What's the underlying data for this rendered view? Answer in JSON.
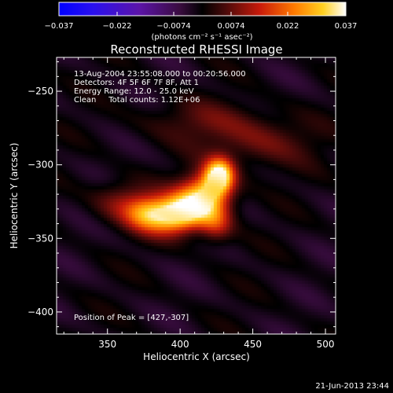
{
  "colorbar": {
    "tick_labels": [
      "−0.037",
      "−0.022",
      "−0.0074",
      "0.0074",
      "0.022",
      "0.037"
    ],
    "tick_values": [
      -0.037,
      -0.022,
      -0.0074,
      0.0074,
      0.022,
      0.037
    ],
    "range": [
      -0.037,
      0.037
    ],
    "units_label": "(photons cm⁻² s⁻¹ asec⁻²)"
  },
  "chart_data": {
    "type": "heatmap",
    "title": "Reconstructed RHESSI Image",
    "xlabel": "Heliocentric X (arcsec)",
    "ylabel": "Heliocentric Y (arcsec)",
    "xlim": [
      315,
      507
    ],
    "ylim": [
      -415,
      -227
    ],
    "xticks": [
      350,
      400,
      450,
      500
    ],
    "yticks": [
      -250,
      -300,
      -350,
      -400
    ],
    "xtick_labels": [
      "350",
      "400",
      "450",
      "500"
    ],
    "ytick_labels": [
      "−250",
      "−300",
      "−350",
      "−400"
    ],
    "annotations": [
      "13-Aug-2004 23:55:08.000 to 00:20:56.000",
      "Detectors: 4F 5F 6F 7F 8F, Att 1",
      "Energy Range: 12.0 - 25.0 keV",
      "Clean     Total counts: 1.12E+06"
    ],
    "peak_label": "Position of Peak = [427,-307]",
    "peak": [
      427,
      -307
    ],
    "sources": [
      {
        "x": 427,
        "y": -307,
        "amp": 1.0,
        "sx": 7,
        "sy": 8
      },
      {
        "x": 418,
        "y": -320,
        "amp": 0.8,
        "sx": 12,
        "sy": 10
      },
      {
        "x": 405,
        "y": -332,
        "amp": 0.72,
        "sx": 12,
        "sy": 9
      },
      {
        "x": 390,
        "y": -335,
        "amp": 0.62,
        "sx": 12,
        "sy": 9
      },
      {
        "x": 375,
        "y": -333,
        "amp": 0.45,
        "sx": 10,
        "sy": 8
      },
      {
        "x": 425,
        "y": -340,
        "amp": 0.4,
        "sx": 8,
        "sy": 9
      },
      {
        "x": 360,
        "y": -325,
        "amp": 0.3,
        "sx": 14,
        "sy": 10
      },
      {
        "x": 455,
        "y": -285,
        "amp": 0.25,
        "sx": 25,
        "sy": 12
      },
      {
        "x": 415,
        "y": -270,
        "amp": 0.18,
        "sx": 30,
        "sy": 10
      }
    ]
  },
  "footer": {
    "timestamp": "21-Jun-2013 23:44"
  }
}
